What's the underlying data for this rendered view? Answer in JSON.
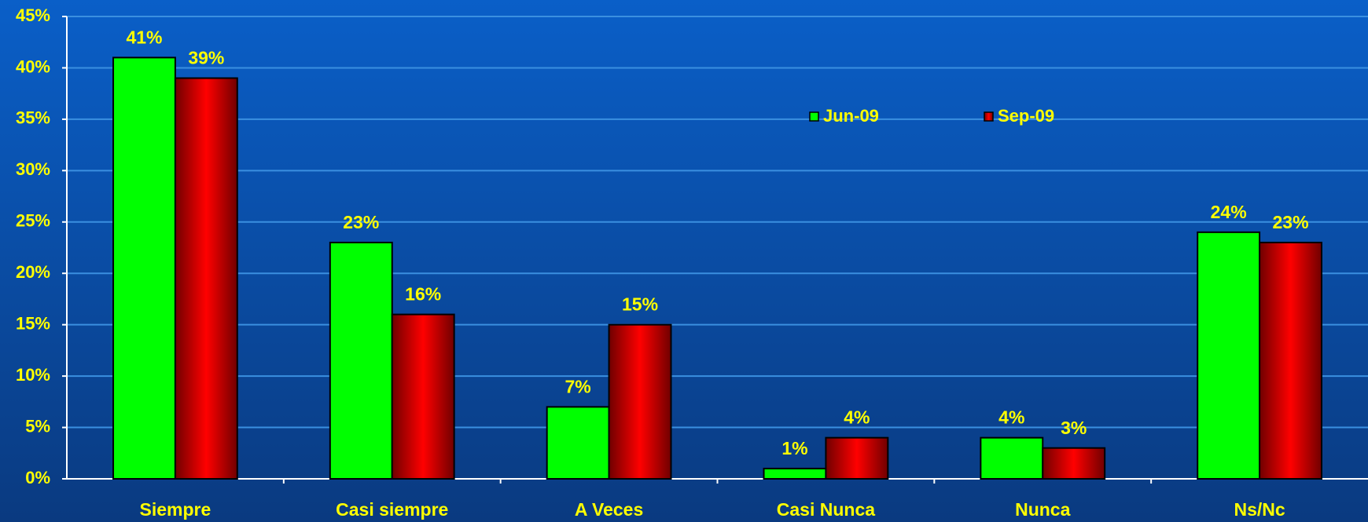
{
  "chart_data": {
    "type": "bar",
    "categories": [
      "Siempre",
      "Casi siempre",
      "A Veces",
      "Casi Nunca",
      "Nunca",
      "Ns/Nc"
    ],
    "series": [
      {
        "name": "Jun-09",
        "color": "#00ff00",
        "values": [
          41,
          23,
          7,
          1,
          4,
          24
        ],
        "value_labels": [
          "41%",
          "23%",
          "7%",
          "1%",
          "4%",
          "24%"
        ]
      },
      {
        "name": "Sep-09",
        "color": "#ff0000",
        "values": [
          39,
          16,
          15,
          4,
          3,
          23
        ],
        "value_labels": [
          "39%",
          "16%",
          "15%",
          "4%",
          "3%",
          "23%"
        ]
      }
    ],
    "ylim": [
      0,
      45
    ],
    "yticks": [
      {
        "value": 0,
        "label": "0%"
      },
      {
        "value": 5,
        "label": "5%"
      },
      {
        "value": 10,
        "label": "10%"
      },
      {
        "value": 15,
        "label": "15%"
      },
      {
        "value": 20,
        "label": "20%"
      },
      {
        "value": 25,
        "label": "25%"
      },
      {
        "value": 30,
        "label": "30%"
      },
      {
        "value": 35,
        "label": "35%"
      },
      {
        "value": 40,
        "label": "40%"
      },
      {
        "value": 45,
        "label": "45%"
      }
    ],
    "grid": true,
    "legend": "top"
  }
}
